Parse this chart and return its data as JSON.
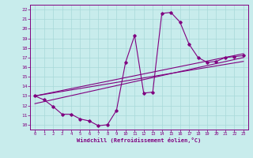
{
  "xlabel": "Windchill (Refroidissement éolien,°C)",
  "bg_color": "#c8ecec",
  "line_color": "#800080",
  "grid_color": "#a8d8d8",
  "xlim": [
    -0.5,
    23.5
  ],
  "ylim": [
    9.5,
    22.5
  ],
  "xticks": [
    0,
    1,
    2,
    3,
    4,
    5,
    6,
    7,
    8,
    9,
    10,
    11,
    12,
    13,
    14,
    15,
    16,
    17,
    18,
    19,
    20,
    21,
    22,
    23
  ],
  "yticks": [
    10,
    11,
    12,
    13,
    14,
    15,
    16,
    17,
    18,
    19,
    20,
    21,
    22
  ],
  "curve1_x": [
    0,
    1,
    2,
    3,
    4,
    5,
    6,
    7,
    8,
    9,
    10,
    11,
    12,
    13,
    14,
    15,
    16,
    17,
    18,
    19,
    20,
    21,
    22,
    23
  ],
  "curve1_y": [
    13.0,
    12.6,
    11.9,
    11.1,
    11.1,
    10.6,
    10.4,
    9.9,
    10.0,
    11.5,
    16.5,
    19.3,
    13.3,
    13.4,
    21.6,
    21.7,
    20.7,
    18.4,
    17.0,
    16.5,
    16.6,
    17.0,
    17.1,
    17.2
  ],
  "line1_x": [
    0,
    23
  ],
  "line1_y": [
    13.0,
    17.4
  ],
  "line2_x": [
    0,
    23
  ],
  "line2_y": [
    12.2,
    17.0
  ],
  "line3_x": [
    0,
    23
  ],
  "line3_y": [
    13.0,
    16.6
  ]
}
